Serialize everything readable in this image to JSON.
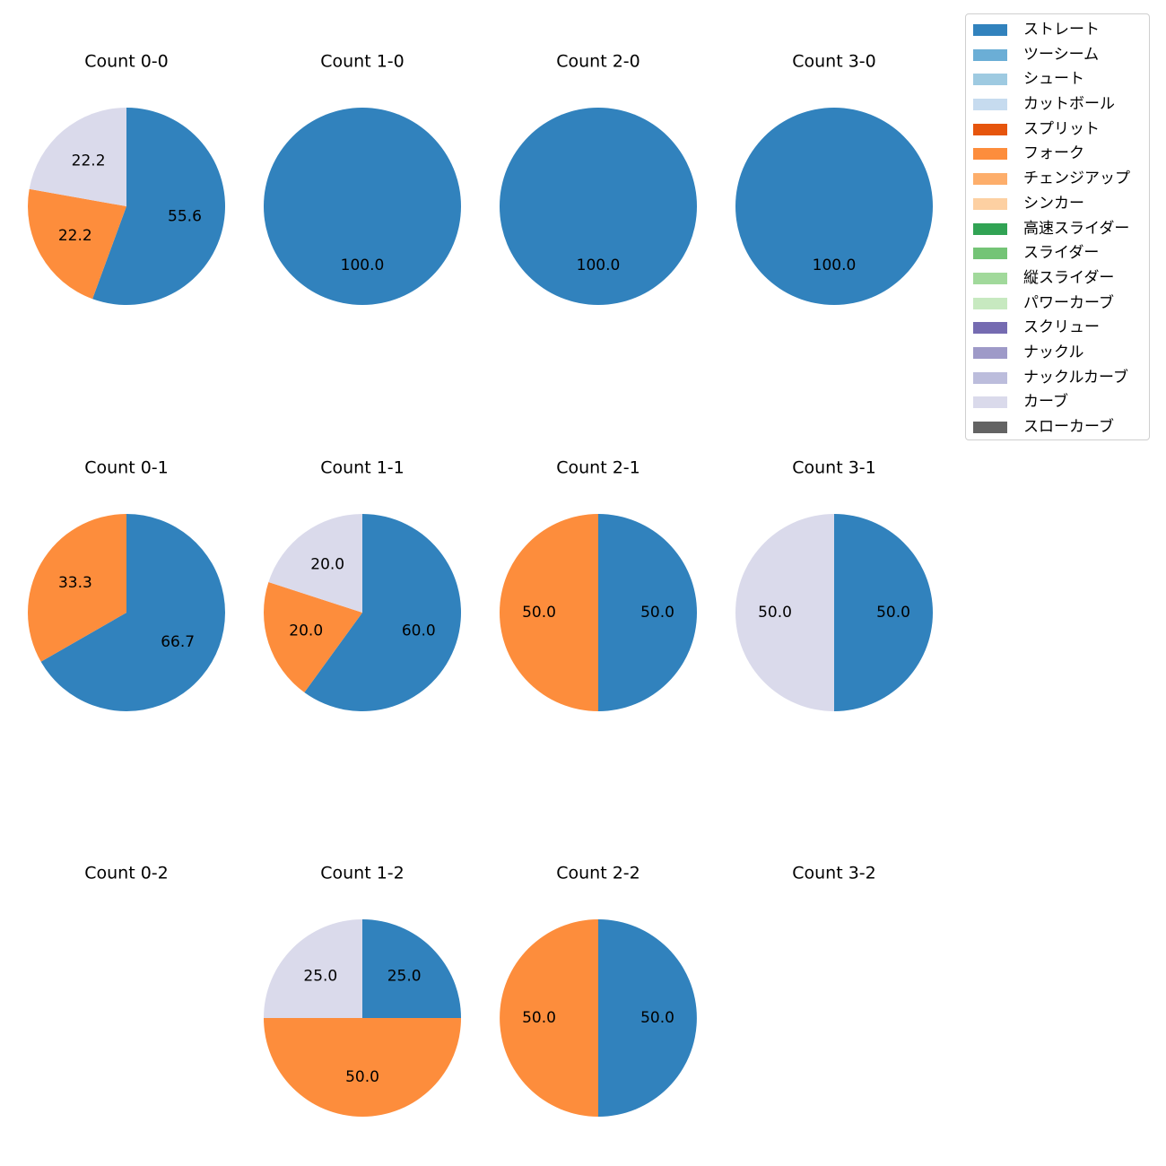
{
  "chart_data": {
    "type": "pie",
    "title": "",
    "legend": {
      "position": "top-right",
      "entries": [
        {
          "label": "ストレート",
          "color": "#3182bd"
        },
        {
          "label": "ツーシーム",
          "color": "#6baed6"
        },
        {
          "label": "シュート",
          "color": "#9ecae1"
        },
        {
          "label": "カットボール",
          "color": "#c6dbef"
        },
        {
          "label": "スプリット",
          "color": "#e6550d"
        },
        {
          "label": "フォーク",
          "color": "#fd8d3c"
        },
        {
          "label": "チェンジアップ",
          "color": "#fdae6b"
        },
        {
          "label": "シンカー",
          "color": "#fdd0a2"
        },
        {
          "label": "高速スライダー",
          "color": "#31a354"
        },
        {
          "label": "スライダー",
          "color": "#74c476"
        },
        {
          "label": "縦スライダー",
          "color": "#a1d99b"
        },
        {
          "label": "パワーカーブ",
          "color": "#c7e9c0"
        },
        {
          "label": "スクリュー",
          "color": "#756bb1"
        },
        {
          "label": "ナックル",
          "color": "#9e9ac8"
        },
        {
          "label": "ナックルカーブ",
          "color": "#bcbddc"
        },
        {
          "label": "カーブ",
          "color": "#dadaeb"
        },
        {
          "label": "スローカーブ",
          "color": "#636363"
        }
      ]
    },
    "panels": [
      {
        "title": "Count 0-0",
        "slices": [
          {
            "label": "ストレート",
            "value": 55.6,
            "text": "55.6"
          },
          {
            "label": "フォーク",
            "value": 22.2,
            "text": "22.2"
          },
          {
            "label": "カーブ",
            "value": 22.2,
            "text": "22.2"
          }
        ]
      },
      {
        "title": "Count 1-0",
        "slices": [
          {
            "label": "ストレート",
            "value": 100.0,
            "text": "100.0"
          }
        ]
      },
      {
        "title": "Count 2-0",
        "slices": [
          {
            "label": "ストレート",
            "value": 100.0,
            "text": "100.0"
          }
        ]
      },
      {
        "title": "Count 3-0",
        "slices": [
          {
            "label": "ストレート",
            "value": 100.0,
            "text": "100.0"
          }
        ]
      },
      {
        "title": "Count 0-1",
        "slices": [
          {
            "label": "ストレート",
            "value": 66.7,
            "text": "66.7"
          },
          {
            "label": "フォーク",
            "value": 33.3,
            "text": "33.3"
          }
        ]
      },
      {
        "title": "Count 1-1",
        "slices": [
          {
            "label": "ストレート",
            "value": 60.0,
            "text": "60.0"
          },
          {
            "label": "フォーク",
            "value": 20.0,
            "text": "20.0"
          },
          {
            "label": "カーブ",
            "value": 20.0,
            "text": "20.0"
          }
        ]
      },
      {
        "title": "Count 2-1",
        "slices": [
          {
            "label": "ストレート",
            "value": 50.0,
            "text": "50.0"
          },
          {
            "label": "フォーク",
            "value": 50.0,
            "text": "50.0"
          }
        ]
      },
      {
        "title": "Count 3-1",
        "slices": [
          {
            "label": "ストレート",
            "value": 50.0,
            "text": "50.0"
          },
          {
            "label": "カーブ",
            "value": 50.0,
            "text": "50.0"
          }
        ]
      },
      {
        "title": "Count 0-2",
        "slices": []
      },
      {
        "title": "Count 1-2",
        "slices": [
          {
            "label": "ストレート",
            "value": 25.0,
            "text": "25.0"
          },
          {
            "label": "フォーク",
            "value": 50.0,
            "text": "50.0"
          },
          {
            "label": "カーブ",
            "value": 25.0,
            "text": "25.0"
          }
        ]
      },
      {
        "title": "Count 2-2",
        "slices": [
          {
            "label": "ストレート",
            "value": 50.0,
            "text": "50.0"
          },
          {
            "label": "フォーク",
            "value": 50.0,
            "text": "50.0"
          }
        ]
      },
      {
        "title": "Count 3-2",
        "slices": []
      }
    ]
  }
}
